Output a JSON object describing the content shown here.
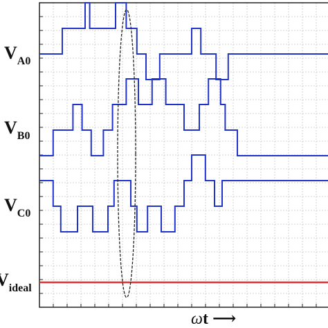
{
  "colors": {
    "signal": "#1f33cc",
    "ideal": "#e03030",
    "grid": "#c8c8c8",
    "frame": "#222222",
    "ellipse": "#222222"
  },
  "labels": {
    "va0_main": "V",
    "va0_sub": "A0",
    "vb0_main": "V",
    "vb0_sub": "B0",
    "vc0_main": "V",
    "vc0_sub": "C0",
    "ideal_main": "V",
    "ideal_sub": "ideal"
  },
  "axis": {
    "omega": "ω",
    "t": "t",
    "arrow": "⟶"
  },
  "waveforms": {
    "VA0": {
      "levels": [
        0,
        1,
        2
      ],
      "transitions": [
        [
          0,
          0
        ],
        [
          1.5,
          1
        ],
        [
          3.0,
          2
        ],
        [
          3.3,
          1
        ],
        [
          5.0,
          2
        ],
        [
          5.7,
          1
        ],
        [
          6.4,
          0
        ],
        [
          7.0,
          -1
        ],
        [
          7.9,
          0
        ],
        [
          10.0,
          1
        ],
        [
          10.6,
          0
        ],
        [
          11.6,
          -1
        ],
        [
          12.4,
          0
        ]
      ]
    },
    "VB0": {
      "transitions": [
        [
          0,
          -1
        ],
        [
          0.9,
          0
        ],
        [
          2.2,
          1
        ],
        [
          2.8,
          0
        ],
        [
          3.4,
          -1
        ],
        [
          4.2,
          0
        ],
        [
          4.8,
          1
        ],
        [
          5.7,
          2
        ],
        [
          6.5,
          1
        ],
        [
          7.4,
          2
        ],
        [
          8.3,
          1
        ],
        [
          9.5,
          0
        ],
        [
          10.5,
          1
        ],
        [
          11.1,
          2
        ],
        [
          11.9,
          1
        ],
        [
          12.2,
          0
        ],
        [
          13.0,
          -1
        ]
      ]
    },
    "VC0": {
      "transitions": [
        [
          0,
          1
        ],
        [
          0.9,
          0
        ],
        [
          1.4,
          -1
        ],
        [
          2.5,
          0
        ],
        [
          3.5,
          -1
        ],
        [
          4.5,
          0
        ],
        [
          4.9,
          1
        ],
        [
          6.0,
          0
        ],
        [
          6.4,
          -1
        ],
        [
          7.1,
          0
        ],
        [
          8.0,
          -1
        ],
        [
          8.9,
          0
        ],
        [
          9.5,
          1
        ],
        [
          10.0,
          2
        ],
        [
          10.9,
          1
        ],
        [
          11.5,
          0
        ],
        [
          12.0,
          1
        ],
        [
          13.0,
          1
        ]
      ]
    }
  }
}
